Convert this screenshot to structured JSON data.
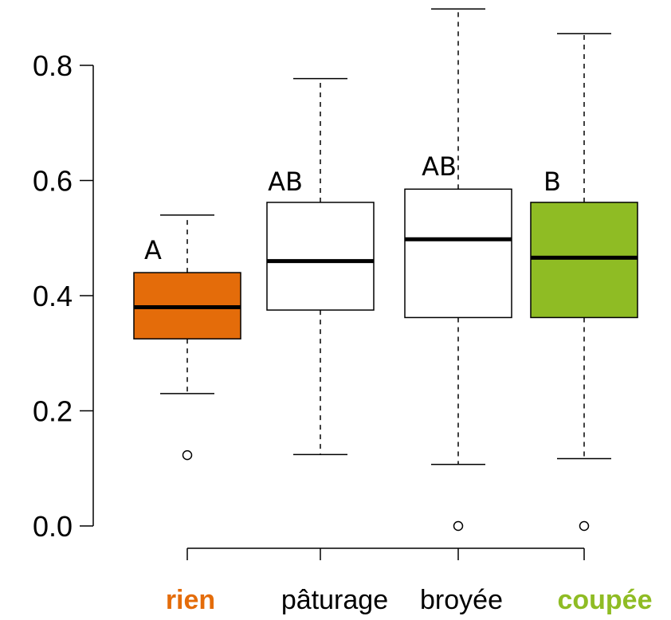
{
  "chart_data": {
    "type": "boxplot",
    "categories": [
      "rien",
      "pâturage",
      "broyée",
      "coupée"
    ],
    "category_colors": [
      "#e46c0a",
      "#000000",
      "#000000",
      "#8fbc24"
    ],
    "category_bold": [
      true,
      false,
      false,
      true
    ],
    "box_fill": [
      "#e46c0a",
      "#ffffff",
      "#ffffff",
      "#8fbc24"
    ],
    "ylim": [
      0,
      0.8
    ],
    "yticks": [
      "0.0",
      "0.2",
      "0.4",
      "0.6",
      "0.8"
    ],
    "ytick_values": [
      0,
      0.2,
      0.4,
      0.6,
      0.8
    ],
    "boxes": [
      {
        "min": 0.23,
        "q1": 0.325,
        "median": 0.38,
        "q3": 0.44,
        "max": 0.54,
        "outliers": [
          0.123
        ]
      },
      {
        "min": 0.124,
        "q1": 0.375,
        "median": 0.46,
        "q3": 0.562,
        "max": 0.777,
        "outliers": []
      },
      {
        "min": 0.107,
        "q1": 0.362,
        "median": 0.498,
        "q3": 0.585,
        "max": 0.898,
        "outliers": [
          0.0
        ]
      },
      {
        "min": 0.117,
        "q1": 0.362,
        "median": 0.466,
        "q3": 0.562,
        "max": 0.855,
        "outliers": [
          0.0
        ]
      }
    ],
    "group_letters": [
      "A",
      "AB",
      "AB",
      "B"
    ],
    "xlabel": "",
    "ylabel": "",
    "title": ""
  }
}
